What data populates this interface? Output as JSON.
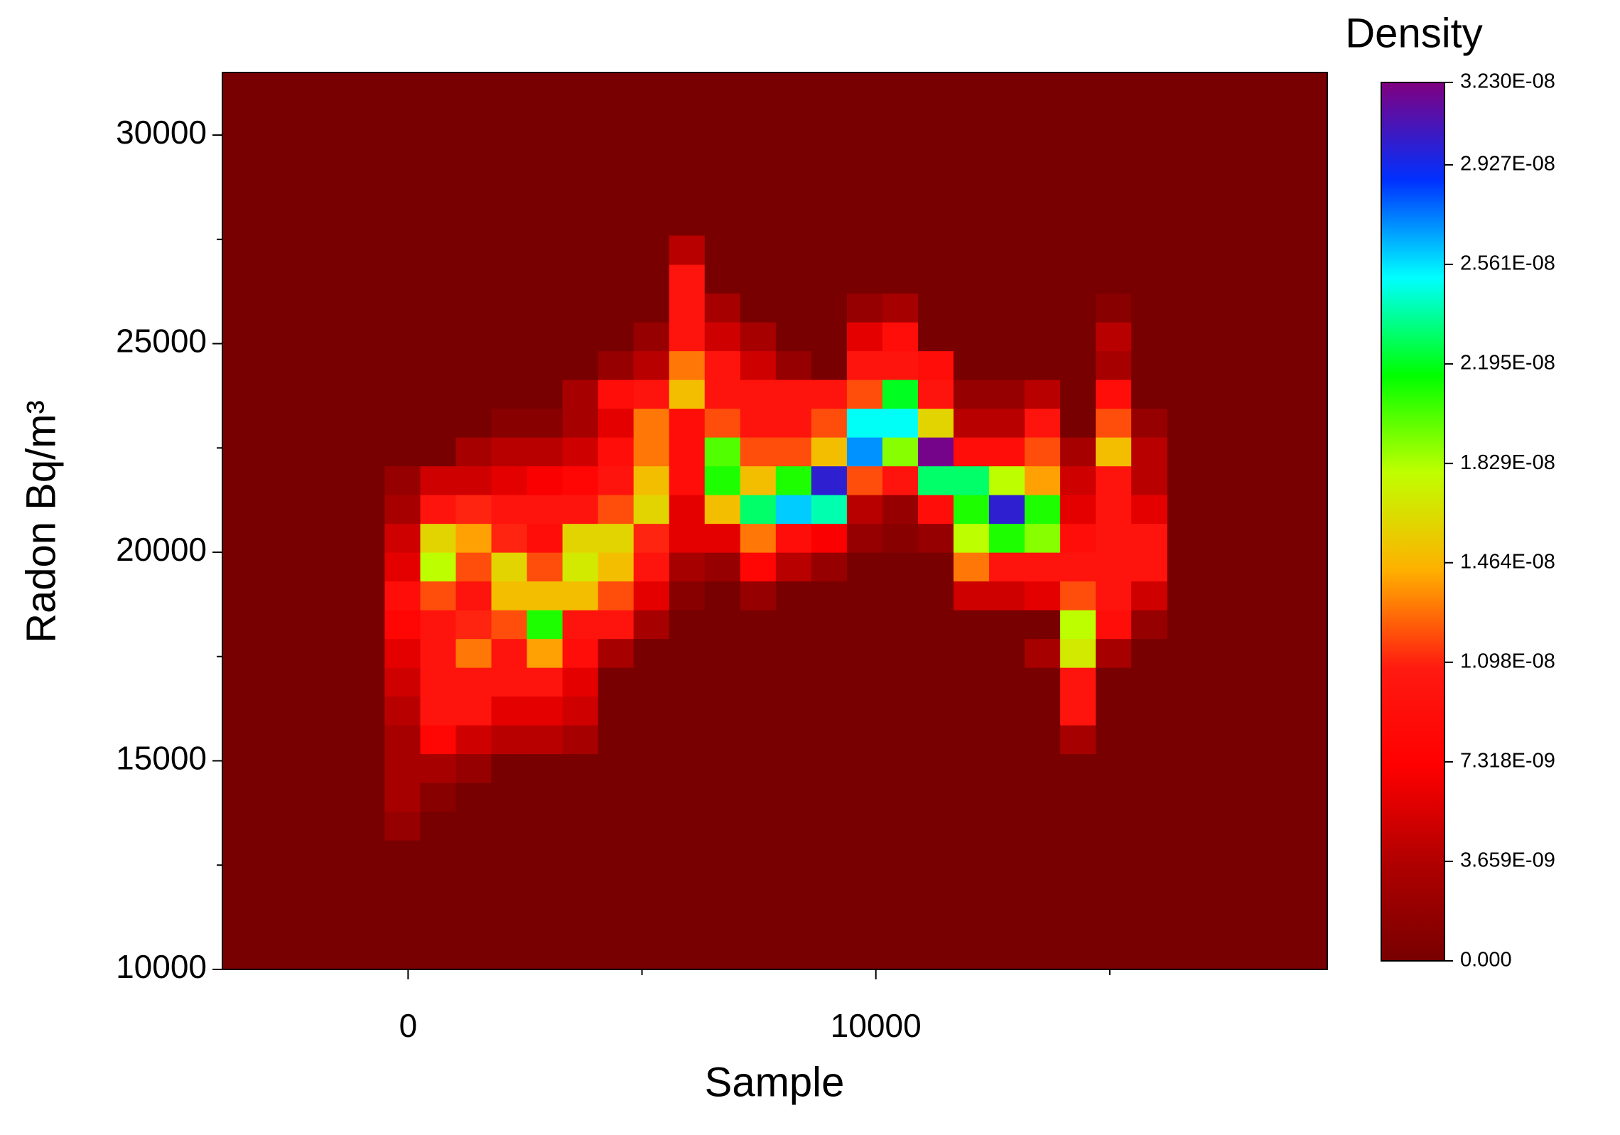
{
  "chart_data": {
    "type": "heatmap",
    "xlabel": "Sample",
    "ylabel": "Radon Bq/m³",
    "colorbar_title": "Density",
    "xlim": [
      -3970,
      19650
    ],
    "ylim": [
      10000,
      31500
    ],
    "xticks": [
      0,
      10000
    ],
    "xminorticks": [
      5000,
      15000
    ],
    "yticks": [
      10000,
      15000,
      20000,
      25000,
      30000
    ],
    "yminorticks": [
      12500,
      17500,
      22500,
      27500
    ],
    "zlim": [
      0,
      3.23e-08
    ],
    "zticks": [
      {
        "value": 0,
        "label": "0.000"
      },
      {
        "value": 3.659e-09,
        "label": "3.659E-09"
      },
      {
        "value": 7.318e-09,
        "label": "7.318E-09"
      },
      {
        "value": 1.098e-08,
        "label": "1.098E-08"
      },
      {
        "value": 1.464e-08,
        "label": "1.464E-08"
      },
      {
        "value": 1.829e-08,
        "label": "1.829E-08"
      },
      {
        "value": 2.195e-08,
        "label": "2.195E-08"
      },
      {
        "value": 2.561e-08,
        "label": "2.561E-08"
      },
      {
        "value": 2.927e-08,
        "label": "2.927E-08"
      },
      {
        "value": 3.23e-08,
        "label": "3.230E-08"
      }
    ],
    "colorscale": [
      "#780000",
      "#b00000",
      "#ff0000",
      "#ff1a10",
      "#ffb000",
      "#c0ff00",
      "#00ff00",
      "#00ffff",
      "#0030ff",
      "#800080"
    ],
    "xbins": [
      -500,
      260,
      1020,
      1780,
      2540,
      3300,
      4060,
      4820,
      5580,
      6340,
      7100,
      7860,
      8620,
      9380,
      10140,
      10900,
      11660,
      12420,
      13180,
      13940,
      14700,
      15460,
      16220
    ],
    "ybins": [
      13100,
      13790,
      14480,
      15170,
      15860,
      16550,
      17240,
      17930,
      18620,
      19310,
      20000,
      20690,
      21380,
      22070,
      22760,
      23450,
      24140,
      24830,
      25520,
      26210,
      26900,
      27590
    ],
    "z": [
      [
        2e-09,
        0,
        0,
        0,
        0,
        0,
        0,
        0,
        0,
        0,
        0,
        0,
        0,
        0,
        0,
        0,
        0,
        0,
        0,
        0,
        0,
        0
      ],
      [
        3e-09,
        1e-09,
        0,
        0,
        0,
        0,
        0,
        0,
        0,
        0,
        0,
        0,
        0,
        0,
        0,
        0,
        0,
        0,
        0,
        0,
        0,
        0
      ],
      [
        3e-09,
        3e-09,
        2e-09,
        0,
        0,
        0,
        0,
        0,
        0,
        0,
        0,
        0,
        0,
        0,
        0,
        0,
        0,
        0,
        0,
        0,
        0,
        0
      ],
      [
        3e-09,
        8e-09,
        5e-09,
        4e-09,
        4e-09,
        3e-09,
        0,
        0,
        0,
        0,
        0,
        0,
        0,
        0,
        0,
        0,
        0,
        0,
        0,
        3e-09,
        0,
        0
      ],
      [
        4e-09,
        1e-08,
        1e-08,
        6e-09,
        6e-09,
        5e-09,
        0,
        0,
        0,
        0,
        0,
        0,
        0,
        0,
        0,
        0,
        0,
        0,
        0,
        1e-08,
        0,
        0
      ],
      [
        5e-09,
        1e-08,
        1e-08,
        1e-08,
        1e-08,
        6e-09,
        0,
        0,
        0,
        0,
        0,
        0,
        0,
        0,
        0,
        0,
        0,
        0,
        0,
        1e-08,
        0,
        0
      ],
      [
        6e-09,
        1e-08,
        1.3e-08,
        1e-08,
        1.4e-08,
        9e-09,
        3e-09,
        0,
        0,
        0,
        0,
        0,
        0,
        0,
        0,
        0,
        0,
        0,
        3e-09,
        1.7e-08,
        3e-09,
        0
      ],
      [
        8e-09,
        1e-08,
        1.1e-08,
        1.2e-08,
        2.1e-08,
        1e-08,
        1e-08,
        3e-09,
        0,
        0,
        0,
        0,
        0,
        0,
        0,
        0,
        0,
        0,
        0,
        1.8e-08,
        9e-09,
        2e-09
      ],
      [
        9e-09,
        1.2e-08,
        1e-08,
        1.5e-08,
        1.5e-08,
        1.5e-08,
        1.2e-08,
        6e-09,
        1e-09,
        0,
        2e-09,
        0,
        0,
        0,
        0,
        0,
        5e-09,
        5e-09,
        6e-09,
        1.2e-08,
        1e-08,
        5e-09
      ],
      [
        6e-09,
        1.8e-08,
        1.2e-08,
        1.6e-08,
        1.2e-08,
        1.7e-08,
        1.5e-08,
        1e-08,
        3e-09,
        2e-09,
        8e-09,
        4e-09,
        2e-09,
        0,
        0,
        0,
        1.3e-08,
        1e-08,
        1e-08,
        1e-08,
        1e-08,
        1e-08
      ],
      [
        5e-09,
        1.6e-08,
        1.4e-08,
        1.1e-08,
        9e-09,
        1.6e-08,
        1.6e-08,
        1.1e-08,
        6e-09,
        6e-09,
        1.3e-08,
        9e-09,
        7e-09,
        2e-09,
        1e-09,
        2e-09,
        1.8e-08,
        2.1e-08,
        1.9e-08,
        9e-09,
        1e-08,
        1e-08
      ],
      [
        3e-09,
        1e-08,
        1.1e-08,
        1e-08,
        1e-08,
        1e-08,
        1.2e-08,
        1.6e-08,
        6e-09,
        1.5e-08,
        2.3e-08,
        2.6e-08,
        2.4e-08,
        4e-09,
        2e-09,
        9e-09,
        2.1e-08,
        3e-08,
        2.1e-08,
        6e-09,
        1e-08,
        6e-09
      ],
      [
        2e-09,
        5e-09,
        5e-09,
        6e-09,
        7e-09,
        8e-09,
        1e-08,
        1.5e-08,
        9e-09,
        2.1e-08,
        1.5e-08,
        2.1e-08,
        3e-08,
        1.2e-08,
        1e-08,
        2.3e-08,
        2.3e-08,
        1.8e-08,
        1.4e-08,
        5e-09,
        1e-08,
        4e-09
      ],
      [
        0,
        0,
        3e-09,
        4e-09,
        4e-09,
        5e-09,
        9e-09,
        1.3e-08,
        9e-09,
        2e-08,
        1.2e-08,
        1.2e-08,
        1.5e-08,
        2.7e-08,
        1.9e-08,
        3.2e-08,
        9e-09,
        9e-09,
        1.2e-08,
        3e-09,
        1.5e-08,
        4e-09
      ],
      [
        0,
        0,
        0,
        1e-09,
        1e-09,
        3e-09,
        6e-09,
        1.3e-08,
        9e-09,
        1.2e-08,
        1e-08,
        1e-08,
        1.2e-08,
        2.5e-08,
        2.5e-08,
        1.6e-08,
        4e-09,
        4e-09,
        1e-08,
        0,
        1.2e-08,
        2e-09
      ],
      [
        0,
        0,
        0,
        0,
        0,
        3e-09,
        9e-09,
        1e-08,
        1.5e-08,
        1e-08,
        1e-08,
        1e-08,
        1e-08,
        1.2e-08,
        2.2e-08,
        1e-08,
        2e-09,
        2e-09,
        4e-09,
        0,
        9e-09,
        0
      ],
      [
        0,
        0,
        0,
        0,
        0,
        0,
        2e-09,
        4e-09,
        1.3e-08,
        1e-08,
        5e-09,
        2e-09,
        0,
        1e-08,
        1e-08,
        9e-09,
        0,
        0,
        0,
        0,
        3e-09,
        0
      ],
      [
        0,
        0,
        0,
        0,
        0,
        0,
        0,
        2e-09,
        1e-08,
        5e-09,
        3e-09,
        0,
        0,
        6e-09,
        9e-09,
        0,
        0,
        0,
        0,
        0,
        4e-09,
        0
      ],
      [
        0,
        0,
        0,
        0,
        0,
        0,
        0,
        0,
        1e-08,
        3e-09,
        0,
        0,
        0,
        2e-09,
        3e-09,
        0,
        0,
        0,
        0,
        0,
        1e-09,
        0
      ],
      [
        0,
        0,
        0,
        0,
        0,
        0,
        0,
        0,
        1e-08,
        0,
        0,
        0,
        0,
        0,
        0,
        0,
        0,
        0,
        0,
        0,
        0,
        0
      ],
      [
        0,
        0,
        0,
        0,
        0,
        0,
        0,
        0,
        4e-09,
        0,
        0,
        0,
        0,
        0,
        0,
        0,
        0,
        0,
        0,
        0,
        0,
        0
      ]
    ]
  }
}
